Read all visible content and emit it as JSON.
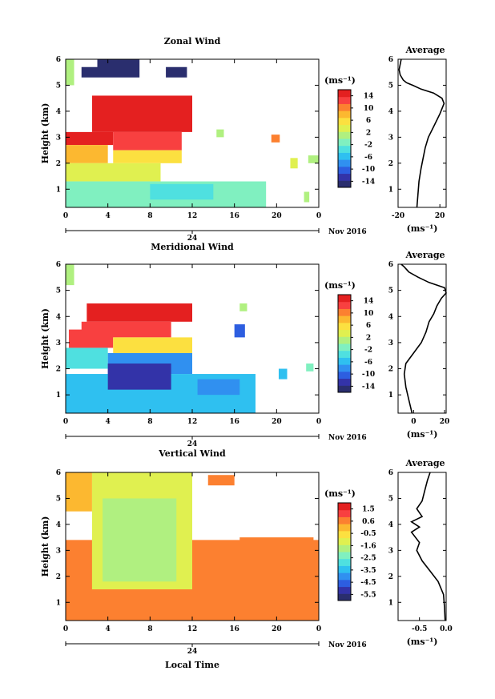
{
  "chart_data": [
    {
      "type": "heatmap",
      "title": "Zonal Wind",
      "ylabel": "Height (km)",
      "colorbar_unit": "(ms⁻¹)",
      "x_ticks": [
        "0",
        "4",
        "8",
        "12",
        "16",
        "20",
        "0"
      ],
      "date_marker": "24",
      "date_suffix": "Nov 2016",
      "y_ticks": [
        "1",
        "2",
        "3",
        "4",
        "5",
        "6"
      ],
      "xlim": [
        0,
        24
      ],
      "ylim": [
        0.3,
        6.0
      ],
      "colorbar_ticks": [
        "14",
        "10",
        "6",
        "2",
        "-2",
        "-6",
        "-10",
        "-14"
      ],
      "colorbar_range": [
        -16,
        16
      ],
      "regions": [
        {
          "t0": 3.0,
          "t1": 7.0,
          "h0": 5.3,
          "h1": 6.0,
          "v": -15
        },
        {
          "t0": 1.5,
          "t1": 3.0,
          "h0": 5.3,
          "h1": 5.7,
          "v": -15
        },
        {
          "t0": 9.5,
          "t1": 11.5,
          "h0": 5.3,
          "h1": 5.7,
          "v": -15
        },
        {
          "t0": 2.5,
          "t1": 12.0,
          "h0": 3.2,
          "h1": 4.6,
          "v": 14
        },
        {
          "t0": 0.0,
          "t1": 4.5,
          "h0": 2.7,
          "h1": 3.2,
          "v": 14
        },
        {
          "t0": 4.5,
          "t1": 11.0,
          "h0": 2.5,
          "h1": 3.2,
          "v": 13
        },
        {
          "t0": 0.0,
          "t1": 4.0,
          "h0": 2.0,
          "h1": 2.7,
          "v": 9
        },
        {
          "t0": 4.5,
          "t1": 11.0,
          "h0": 2.0,
          "h1": 2.5,
          "v": 6
        },
        {
          "t0": 0.0,
          "t1": 9.0,
          "h0": 1.3,
          "h1": 2.0,
          "v": 3
        },
        {
          "t0": 0.0,
          "t1": 19.0,
          "h0": 0.3,
          "h1": 1.3,
          "v": -2
        },
        {
          "t0": 8.0,
          "t1": 14.0,
          "h0": 0.6,
          "h1": 1.2,
          "v": -4
        },
        {
          "t0": 0.0,
          "t1": 0.8,
          "h0": 5.0,
          "h1": 6.0,
          "v": 0
        },
        {
          "t0": 19.5,
          "t1": 20.3,
          "h0": 2.8,
          "h1": 3.1,
          "v": 10
        },
        {
          "t0": 21.3,
          "t1": 22.0,
          "h0": 1.8,
          "h1": 2.2,
          "v": 4
        },
        {
          "t0": 23.0,
          "t1": 24.0,
          "h0": 2.0,
          "h1": 2.3,
          "v": 2
        },
        {
          "t0": 14.3,
          "t1": 15.0,
          "h0": 3.0,
          "h1": 3.3,
          "v": 2
        },
        {
          "t0": 22.6,
          "t1": 23.1,
          "h0": 0.5,
          "h1": 0.9,
          "v": 0
        }
      ]
    },
    {
      "type": "line",
      "title": "Average",
      "xlabel": "(ms⁻¹)",
      "x_ticks": [
        "-20",
        "20"
      ],
      "y_ticks": [
        "1",
        "2",
        "3",
        "4",
        "5",
        "6"
      ],
      "xlim": [
        -20,
        26
      ],
      "ylim": [
        0.3,
        6.0
      ],
      "x": [
        -2,
        -1,
        0,
        2,
        4,
        6,
        9,
        14,
        20,
        24,
        22,
        14,
        2,
        -6,
        -12,
        -15,
        -18,
        -19,
        -18,
        -17
      ],
      "y": [
        0.3,
        0.8,
        1.3,
        1.8,
        2.2,
        2.6,
        3.0,
        3.4,
        3.9,
        4.3,
        4.5,
        4.7,
        4.85,
        5.0,
        5.1,
        5.2,
        5.4,
        5.6,
        5.8,
        6.0
      ]
    },
    {
      "type": "heatmap",
      "title": "Meridional Wind",
      "ylabel": "Height (km)",
      "colorbar_unit": "(ms⁻¹)",
      "x_ticks": [
        "0",
        "4",
        "8",
        "12",
        "16",
        "20",
        "0"
      ],
      "date_marker": "24",
      "date_suffix": "Nov 2016",
      "y_ticks": [
        "1",
        "2",
        "3",
        "4",
        "5",
        "6"
      ],
      "xlim": [
        0,
        24
      ],
      "ylim": [
        0.3,
        6.0
      ],
      "colorbar_ticks": [
        "14",
        "10",
        "6",
        "2",
        "-2",
        "-6",
        "-10",
        "-14"
      ],
      "colorbar_range": [
        -16,
        16
      ],
      "regions": [
        {
          "t0": 2.0,
          "t1": 12.0,
          "h0": 3.8,
          "h1": 4.5,
          "v": 15
        },
        {
          "t0": 1.5,
          "t1": 10.0,
          "h0": 3.2,
          "h1": 3.8,
          "v": 13
        },
        {
          "t0": 0.3,
          "t1": 4.5,
          "h0": 2.8,
          "h1": 3.5,
          "v": 12
        },
        {
          "t0": 4.5,
          "t1": 12.0,
          "h0": 2.6,
          "h1": 3.2,
          "v": 6
        },
        {
          "t0": 0.0,
          "t1": 4.0,
          "h0": 2.0,
          "h1": 2.8,
          "v": -3
        },
        {
          "t0": 4.0,
          "t1": 12.0,
          "h0": 1.8,
          "h1": 2.6,
          "v": -7
        },
        {
          "t0": 0.0,
          "t1": 18.0,
          "h0": 0.3,
          "h1": 1.8,
          "v": -6
        },
        {
          "t0": 4.0,
          "t1": 10.0,
          "h0": 1.2,
          "h1": 2.2,
          "v": -12
        },
        {
          "t0": 12.5,
          "t1": 16.5,
          "h0": 1.0,
          "h1": 1.6,
          "v": -9
        },
        {
          "t0": 0.0,
          "t1": 0.8,
          "h0": 5.2,
          "h1": 6.0,
          "v": 0
        },
        {
          "t0": 16.0,
          "t1": 17.0,
          "h0": 3.2,
          "h1": 3.7,
          "v": -10
        },
        {
          "t0": 20.2,
          "t1": 21.0,
          "h0": 1.6,
          "h1": 2.0,
          "v": -6
        },
        {
          "t0": 22.8,
          "t1": 23.5,
          "h0": 1.9,
          "h1": 2.2,
          "v": -2
        },
        {
          "t0": 16.5,
          "t1": 17.2,
          "h0": 4.2,
          "h1": 4.5,
          "v": 2
        }
      ]
    },
    {
      "type": "line",
      "title": "Average",
      "xlabel": "(ms⁻¹)",
      "x_ticks": [
        "0",
        "20"
      ],
      "y_ticks": [
        "1",
        "2",
        "3",
        "4",
        "5",
        "6"
      ],
      "xlim": [
        -10,
        21
      ],
      "ylim": [
        0.3,
        6.0
      ],
      "x": [
        -1,
        -3,
        -5,
        -6,
        -5,
        0,
        5,
        8,
        10,
        13,
        15,
        16,
        18,
        21,
        20,
        10,
        3,
        -3,
        -6,
        -8
      ],
      "y": [
        0.3,
        0.8,
        1.3,
        1.8,
        2.2,
        2.6,
        3.0,
        3.4,
        3.8,
        4.1,
        4.4,
        4.5,
        4.7,
        4.9,
        5.1,
        5.3,
        5.5,
        5.7,
        5.9,
        6.0
      ]
    },
    {
      "type": "heatmap",
      "title": "Vertical Wind",
      "ylabel": "Height (km)",
      "colorbar_unit": "(ms⁻¹)",
      "x_ticks": [
        "0",
        "4",
        "8",
        "12",
        "16",
        "20",
        "0"
      ],
      "date_marker": "24",
      "date_suffix": "Nov 2016",
      "xlabel": "Local Time",
      "y_ticks": [
        "1",
        "2",
        "3",
        "4",
        "5",
        "6"
      ],
      "xlim": [
        0,
        24
      ],
      "ylim": [
        0.3,
        6.0
      ],
      "colorbar_ticks": [
        "1.5",
        "0.6",
        "-0.5",
        "-1.6",
        "-2.5",
        "-3.5",
        "-4.5",
        "-5.5"
      ],
      "colorbar_range": [
        -6,
        2
      ],
      "regions": [
        {
          "t0": 0.0,
          "t1": 24.0,
          "h0": 0.3,
          "h1": 3.4,
          "v": 0.5
        },
        {
          "t0": 0.5,
          "t1": 2.5,
          "h0": 0.8,
          "h1": 1.6,
          "v": 0.8
        },
        {
          "t0": 2.5,
          "t1": 12.0,
          "h0": 1.5,
          "h1": 6.0,
          "v": -1.0
        },
        {
          "t0": 3.5,
          "t1": 10.5,
          "h0": 1.8,
          "h1": 5.0,
          "v": -1.5
        },
        {
          "t0": 5.0,
          "t1": 8.5,
          "h0": 2.0,
          "h1": 4.0,
          "v": -1.9
        },
        {
          "t0": 0.0,
          "t1": 2.5,
          "h0": 4.5,
          "h1": 6.0,
          "v": 0.1
        },
        {
          "t0": 13.5,
          "t1": 16.0,
          "h0": 5.5,
          "h1": 5.9,
          "v": 0.5
        },
        {
          "t0": 16.5,
          "t1": 23.5,
          "h0": 2.5,
          "h1": 3.5,
          "v": 0.5
        }
      ]
    },
    {
      "type": "line",
      "title": "Average",
      "xlabel": "(ms⁻¹)",
      "x_ticks": [
        "-0.5",
        "0.0"
      ],
      "y_ticks": [
        "1",
        "2",
        "3",
        "4",
        "5",
        "6"
      ],
      "xlim": [
        -0.9,
        0.0
      ],
      "ylim": [
        0.3,
        6.0
      ],
      "x": [
        -0.02,
        -0.03,
        -0.05,
        -0.15,
        -0.3,
        -0.45,
        -0.55,
        -0.5,
        -0.65,
        -0.5,
        -0.65,
        -0.45,
        -0.55,
        -0.45,
        -0.4,
        -0.35,
        -0.3
      ],
      "y": [
        0.3,
        0.8,
        1.3,
        1.8,
        2.2,
        2.6,
        3.0,
        3.3,
        3.7,
        3.9,
        4.1,
        4.3,
        4.6,
        4.9,
        5.3,
        5.7,
        6.0
      ]
    }
  ]
}
